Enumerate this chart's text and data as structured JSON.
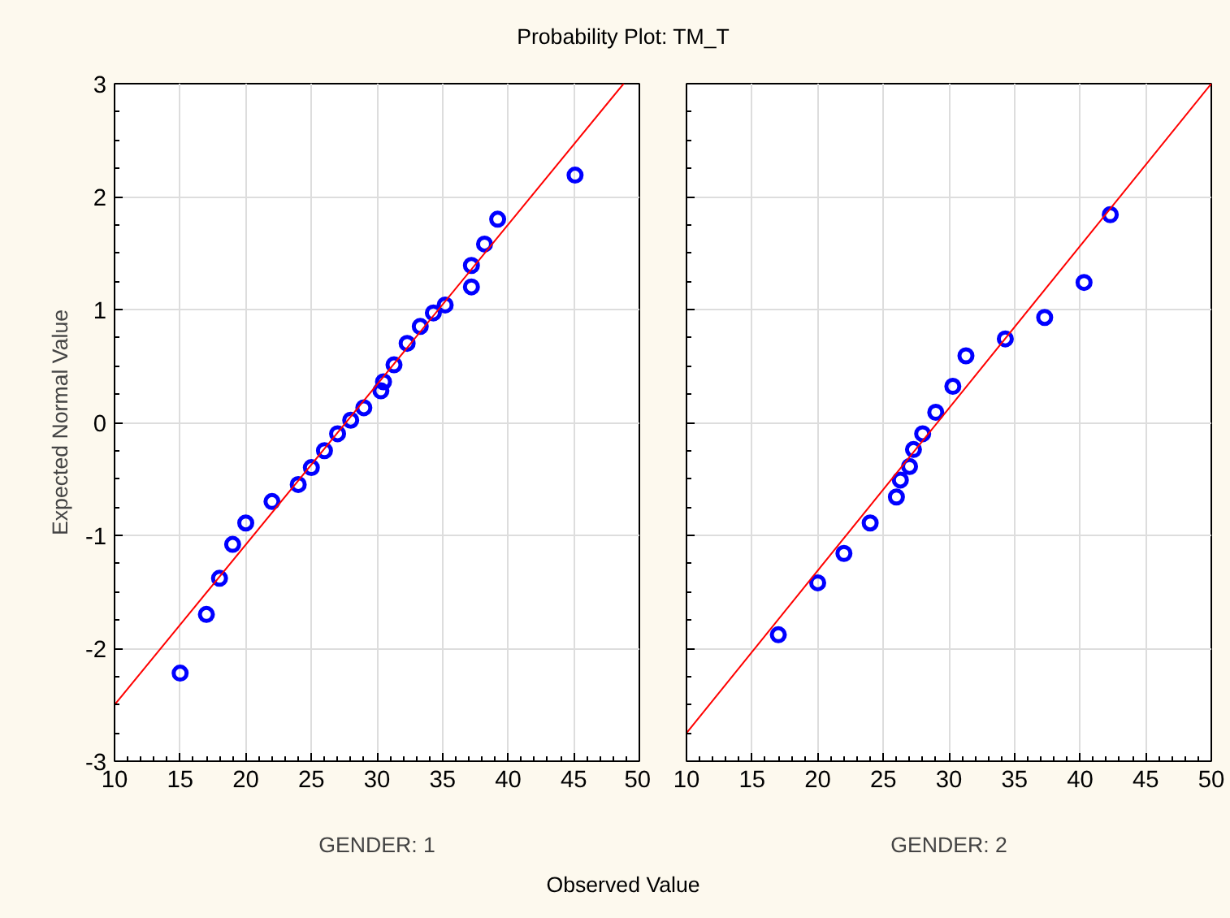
{
  "chart_data": [
    {
      "type": "scatter",
      "title": "Probability Plot: TM_T",
      "xlabel": "GENDER: 1",
      "ylabel": "Expected Normal Value",
      "annotations": [
        "Observed Value"
      ],
      "xlim": [
        10,
        50
      ],
      "ylim": [
        -3,
        3
      ],
      "xticks": [
        10,
        15,
        20,
        25,
        30,
        35,
        40,
        45,
        50
      ],
      "yticks": [
        -3,
        -2,
        -1,
        0,
        1,
        2,
        3
      ],
      "grid": true,
      "series": [
        {
          "marker": "circle",
          "color": "#0000ff",
          "x": [
            15,
            17,
            18,
            19,
            20,
            22,
            24,
            25,
            26,
            27,
            28,
            29,
            30.3,
            30.5,
            31.3,
            32.3,
            33.3,
            34.3,
            35.2,
            37.2,
            37.2,
            38.2,
            39.2,
            45.1
          ],
          "values": [
            -2.22,
            -1.7,
            -1.38,
            -1.08,
            -0.89,
            -0.7,
            -0.55,
            -0.4,
            -0.25,
            -0.1,
            0.02,
            0.13,
            0.28,
            0.36,
            0.51,
            0.7,
            0.85,
            0.97,
            1.04,
            1.2,
            1.39,
            1.58,
            1.8,
            2.19
          ]
        },
        {
          "type": "line",
          "line_style": "solid",
          "color": "#ff0000",
          "x": [
            10,
            48.8
          ],
          "values": [
            -2.5,
            3
          ]
        }
      ]
    },
    {
      "type": "scatter",
      "xlabel": "GENDER: 2",
      "tick_labels": "x",
      "xlim": [
        10,
        50
      ],
      "ylim": [
        -3,
        3
      ],
      "xticks": [
        10,
        15,
        20,
        25,
        30,
        35,
        40,
        45,
        50
      ],
      "yticks": [
        -3,
        -2,
        -1,
        0,
        1,
        2,
        3
      ],
      "grid": true,
      "series": [
        {
          "marker": "circle",
          "color": "#0000ff",
          "x": [
            17,
            20,
            22,
            24,
            26,
            26.3,
            27,
            27.3,
            28,
            29,
            30.3,
            31.3,
            34.3,
            37.3,
            40.3,
            42.3
          ],
          "values": [
            -1.88,
            -1.42,
            -1.16,
            -0.89,
            -0.66,
            -0.51,
            -0.39,
            -0.24,
            -0.1,
            0.09,
            0.32,
            0.59,
            0.74,
            0.93,
            1.24,
            1.84
          ]
        },
        {
          "type": "line",
          "line_style": "solid",
          "color": "#ff0000",
          "x": [
            10,
            50
          ],
          "values": [
            -2.75,
            3
          ]
        }
      ]
    }
  ]
}
